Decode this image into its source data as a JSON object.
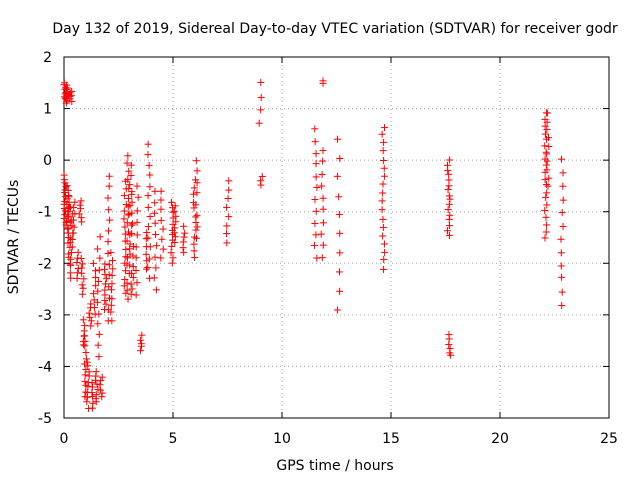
{
  "chart_data": {
    "type": "scatter",
    "title": "Day 132 of 2019, Sidereal Day-to-day VTEC variation (SDTVAR) for receiver godr",
    "xlabel": "GPS time / hours",
    "ylabel": "SDTVAR / TECUs",
    "xlim": [
      0,
      25
    ],
    "ylim": [
      -5,
      2
    ],
    "xticks": [
      0,
      5,
      10,
      15,
      20,
      25
    ],
    "yticks": [
      -5,
      -4,
      -3,
      -2,
      -1,
      0,
      1,
      2
    ],
    "grid": true,
    "marker": "plus",
    "color": "#ff0000",
    "clusters": [
      {
        "x": 0.05,
        "ymin": 1.2,
        "ymax": 1.5,
        "n": 8
      },
      {
        "x": 0.15,
        "ymin": 1.1,
        "ymax": 1.45,
        "n": 8
      },
      {
        "x": 0.3,
        "ymin": 1.15,
        "ymax": 1.35,
        "n": 6
      },
      {
        "x": 0.05,
        "ymin": -1.2,
        "ymax": -0.3,
        "n": 14
      },
      {
        "x": 0.15,
        "ymin": -1.6,
        "ymax": -0.5,
        "n": 14
      },
      {
        "x": 0.25,
        "ymin": -2.0,
        "ymax": -0.7,
        "n": 14
      },
      {
        "x": 0.35,
        "ymin": -2.3,
        "ymax": -0.9,
        "n": 12
      },
      {
        "x": 0.45,
        "ymin": -1.4,
        "ymax": -0.8,
        "n": 6
      },
      {
        "x": 0.6,
        "ymin": -2.3,
        "ymax": -1.8,
        "n": 6
      },
      {
        "x": 0.75,
        "ymin": -1.2,
        "ymax": -0.8,
        "n": 6
      },
      {
        "x": 0.85,
        "ymin": -2.6,
        "ymax": -1.9,
        "n": 8
      },
      {
        "x": 0.9,
        "ymin": -3.6,
        "ymax": -3.1,
        "n": 6
      },
      {
        "x": 1.0,
        "ymin": -4.6,
        "ymax": -3.4,
        "n": 12
      },
      {
        "x": 1.1,
        "ymin": -4.8,
        "ymax": -3.9,
        "n": 10
      },
      {
        "x": 1.2,
        "ymin": -3.2,
        "ymax": -2.8,
        "n": 6
      },
      {
        "x": 1.3,
        "ymin": -4.8,
        "ymax": -4.3,
        "n": 6
      },
      {
        "x": 1.4,
        "ymin": -3.0,
        "ymax": -2.0,
        "n": 8
      },
      {
        "x": 1.5,
        "ymin": -4.7,
        "ymax": -4.1,
        "n": 8
      },
      {
        "x": 1.6,
        "ymin": -3.8,
        "ymax": -1.5,
        "n": 12
      },
      {
        "x": 1.7,
        "ymin": -4.6,
        "ymax": -4.2,
        "n": 6
      },
      {
        "x": 1.9,
        "ymin": -2.9,
        "ymax": -2.0,
        "n": 10
      },
      {
        "x": 2.05,
        "ymin": -3.1,
        "ymax": -0.3,
        "n": 14
      },
      {
        "x": 2.2,
        "ymin": -3.1,
        "ymax": -1.8,
        "n": 10
      },
      {
        "x": 2.8,
        "ymin": -2.6,
        "ymax": -0.4,
        "n": 16
      },
      {
        "x": 2.95,
        "ymin": -2.7,
        "ymax": 0.1,
        "n": 18
      },
      {
        "x": 3.05,
        "ymin": -2.6,
        "ymax": -0.1,
        "n": 14
      },
      {
        "x": 3.15,
        "ymin": -2.5,
        "ymax": -0.6,
        "n": 10
      },
      {
        "x": 3.35,
        "ymin": -2.6,
        "ymax": -0.5,
        "n": 10
      },
      {
        "x": 3.55,
        "ymin": -3.7,
        "ymax": -3.4,
        "n": 5
      },
      {
        "x": 3.75,
        "ymin": -2.1,
        "ymax": -1.4,
        "n": 6
      },
      {
        "x": 3.9,
        "ymin": -2.3,
        "ymax": 0.3,
        "n": 14
      },
      {
        "x": 4.2,
        "ymin": -2.5,
        "ymax": -0.6,
        "n": 10
      },
      {
        "x": 4.5,
        "ymin": -1.9,
        "ymax": -0.6,
        "n": 8
      },
      {
        "x": 4.95,
        "ymin": -2.0,
        "ymax": -0.8,
        "n": 12
      },
      {
        "x": 5.1,
        "ymin": -1.6,
        "ymax": -0.9,
        "n": 8
      },
      {
        "x": 5.5,
        "ymin": -1.8,
        "ymax": -1.3,
        "n": 6
      },
      {
        "x": 6.0,
        "ymin": -1.9,
        "ymax": -0.4,
        "n": 12
      },
      {
        "x": 6.1,
        "ymin": -1.5,
        "ymax": 0.0,
        "n": 8
      },
      {
        "x": 7.5,
        "ymin": -1.6,
        "ymax": -0.4,
        "n": 8
      },
      {
        "x": 9.0,
        "ymin": 0.7,
        "ymax": 1.5,
        "n": 4
      },
      {
        "x": 9.05,
        "ymin": -0.5,
        "ymax": -0.3,
        "n": 3
      },
      {
        "x": 11.9,
        "ymin": 1.5,
        "ymax": 1.55,
        "n": 2
      },
      {
        "x": 11.55,
        "ymin": -1.9,
        "ymax": 0.6,
        "n": 12
      },
      {
        "x": 11.85,
        "ymin": -1.9,
        "ymax": 0.2,
        "n": 10
      },
      {
        "x": 12.6,
        "ymin": -2.9,
        "ymax": 0.4,
        "n": 10
      },
      {
        "x": 14.65,
        "ymin": -2.1,
        "ymax": 0.65,
        "n": 18
      },
      {
        "x": 17.65,
        "ymin": -1.45,
        "ymax": 0.0,
        "n": 16
      },
      {
        "x": 17.7,
        "ymin": -3.8,
        "ymax": -3.4,
        "n": 6
      },
      {
        "x": 22.1,
        "ymin": -1.5,
        "ymax": 0.9,
        "n": 20
      },
      {
        "x": 22.2,
        "ymin": -0.5,
        "ymax": 0.9,
        "n": 10
      },
      {
        "x": 22.85,
        "ymin": -2.8,
        "ymax": 0.0,
        "n": 12
      }
    ]
  }
}
